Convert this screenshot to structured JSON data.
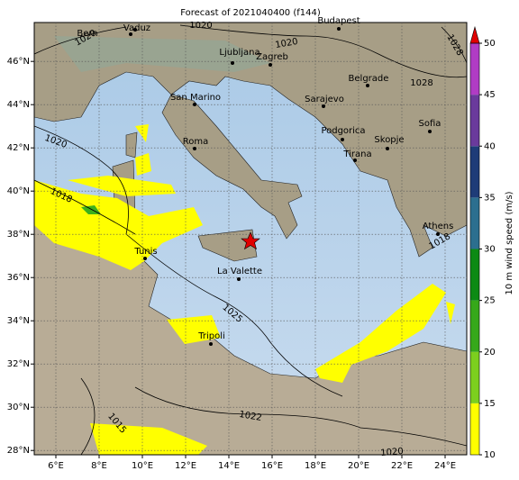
{
  "title": "Forecast of 2021040400 (f144)",
  "map": {
    "lon_ticks": [
      {
        "value": 6,
        "label": "6°E"
      },
      {
        "value": 8,
        "label": "8°E"
      },
      {
        "value": 10,
        "label": "10°E"
      },
      {
        "value": 12,
        "label": "12°E"
      },
      {
        "value": 14,
        "label": "14°E"
      },
      {
        "value": 16,
        "label": "16°E"
      },
      {
        "value": 18,
        "label": "18°E"
      },
      {
        "value": 20,
        "label": "20°E"
      },
      {
        "value": 22,
        "label": "22°E"
      },
      {
        "value": 24,
        "label": "24°E"
      }
    ],
    "lat_ticks": [
      {
        "value": 28,
        "label": "28°N"
      },
      {
        "value": 30,
        "label": "30°N"
      },
      {
        "value": 32,
        "label": "32°N"
      },
      {
        "value": 34,
        "label": "34°N"
      },
      {
        "value": 36,
        "label": "36°N"
      },
      {
        "value": 38,
        "label": "38°N"
      },
      {
        "value": 40,
        "label": "40°N"
      },
      {
        "value": 42,
        "label": "42°N"
      },
      {
        "value": 44,
        "label": "44°N"
      },
      {
        "value": 46,
        "label": "46°N"
      }
    ],
    "cities": [
      "Bern",
      "Vaduz",
      "Ljubljana",
      "Zagreb",
      "Budapest",
      "San Marino",
      "Belgrade",
      "Sarajevo",
      "Roma",
      "Podgorica",
      "Sofia",
      "Skopje",
      "Tirana",
      "Tunis",
      "La Valette",
      "Athens",
      "Tripoli"
    ],
    "isobar_labels": [
      "1020",
      "1020",
      "1020",
      "1028",
      "1028",
      "1020",
      "1018",
      "1025",
      "1022",
      "1015",
      "1020",
      "1018"
    ]
  },
  "colorbar": {
    "label": "10 m wind speed (m/s)",
    "lim": [
      10,
      50
    ],
    "ticks": [
      10,
      15,
      20,
      25,
      30,
      35,
      40,
      45,
      50
    ],
    "colors": [
      "#ffff00",
      "#7ccf1e",
      "#36a81a",
      "#0c8a14",
      "#2c6f8f",
      "#1e3c78",
      "#6a3a9c",
      "#b03cc4"
    ],
    "extend_color": "#e00000"
  }
}
